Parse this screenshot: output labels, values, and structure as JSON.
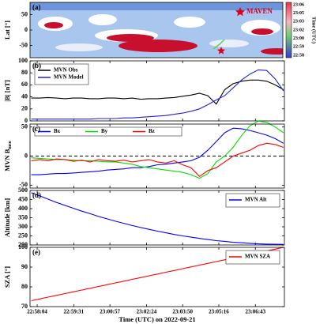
{
  "chart_data": [
    {
      "type": "map",
      "panel_label": "(a)",
      "ylabel": "Lat [°]",
      "ylim": [
        -90,
        90
      ],
      "yticks": [
        -50,
        0,
        50
      ],
      "annotation": "MAVEN",
      "colorbar": {
        "label": "Time (UTC)",
        "ticks": [
          "23:06",
          "23:05",
          "23:03",
          "23:02",
          "23:00",
          "22:59",
          "22:58"
        ]
      }
    },
    {
      "type": "line",
      "panel_label": "(b)",
      "ylabel": "|B| [nT]",
      "ylim": [
        0,
        100
      ],
      "yticks": [
        0,
        20,
        40,
        60,
        80,
        100
      ],
      "xlim": [
        82667,
        83272
      ],
      "legend": "upper left",
      "x": [
        82670,
        82690,
        82710,
        82730,
        82750,
        82770,
        82790,
        82810,
        82830,
        82850,
        82870,
        82890,
        82910,
        82930,
        82950,
        82970,
        82990,
        83010,
        83030,
        83050,
        83070,
        83090,
        83110,
        83130,
        83150,
        83170,
        83190,
        83210,
        83230,
        83250,
        83270
      ],
      "series": [
        {
          "name": "MVN Obs",
          "color": "#000000",
          "values": [
            38,
            38,
            39,
            38,
            37,
            38,
            38,
            37,
            37,
            38,
            38,
            37,
            38,
            36,
            37,
            37,
            38,
            39,
            41,
            43,
            46,
            42,
            28,
            52,
            62,
            66,
            68,
            68,
            66,
            60,
            52
          ]
        },
        {
          "name": "MVN Model",
          "color": "#2020d8",
          "values": [
            3,
            3,
            3,
            3,
            3,
            3,
            3,
            3,
            4,
            4,
            4,
            5,
            5,
            6,
            7,
            8,
            9,
            11,
            13,
            16,
            20,
            27,
            35,
            42,
            55,
            68,
            78,
            85,
            84,
            70,
            50
          ]
        }
      ]
    },
    {
      "type": "line",
      "panel_label": "(c)",
      "ylabel": "MVN B",
      "ylabel_subscript": "mso",
      "ylim": [
        -55,
        55
      ],
      "yticks": [
        -50,
        0,
        50
      ],
      "xlim": [
        82667,
        83272
      ],
      "hline": 0,
      "legend": "upper left",
      "x": [
        82670,
        82690,
        82710,
        82730,
        82750,
        82770,
        82790,
        82810,
        82830,
        82850,
        82870,
        82890,
        82910,
        82930,
        82950,
        82970,
        82990,
        83010,
        83030,
        83050,
        83070,
        83090,
        83110,
        83130,
        83150,
        83170,
        83190,
        83210,
        83230,
        83250,
        83270
      ],
      "series": [
        {
          "name": "Bx",
          "color": "#0000ff",
          "values": [
            -32,
            -32,
            -31,
            -30,
            -30,
            -29,
            -28,
            -27,
            -26,
            -24,
            -23,
            -22,
            -20,
            -20,
            -18,
            -15,
            -14,
            -12,
            -10,
            -8,
            -2,
            10,
            25,
            40,
            48,
            47,
            44,
            40,
            36,
            30,
            22
          ]
        },
        {
          "name": "By",
          "color": "#00e000",
          "values": [
            -3,
            -4,
            -5,
            -6,
            -6,
            -7,
            -8,
            -8,
            -9,
            -10,
            -10,
            -12,
            -14,
            -18,
            -20,
            -22,
            -24,
            -26,
            -28,
            -32,
            -38,
            -30,
            -10,
            0,
            15,
            35,
            52,
            60,
            58,
            50,
            40
          ]
        },
        {
          "name": "Bz",
          "color": "#ff0000",
          "values": [
            -8,
            -6,
            -8,
            -5,
            -6,
            -9,
            -7,
            -10,
            -6,
            -8,
            -9,
            -7,
            -10,
            -8,
            -6,
            -10,
            -12,
            -8,
            -15,
            -20,
            -35,
            -25,
            -20,
            -10,
            0,
            5,
            10,
            18,
            22,
            20,
            15
          ]
        }
      ]
    },
    {
      "type": "line",
      "panel_label": "(d)",
      "ylabel": "Altitude [km]",
      "ylim": [
        200,
        500
      ],
      "yticks": [
        200,
        250,
        300,
        350,
        400,
        450,
        500
      ],
      "xlim": [
        82667,
        83272
      ],
      "legend": "upper right",
      "x": [
        82670,
        82690,
        82710,
        82730,
        82750,
        82770,
        82790,
        82810,
        82830,
        82850,
        82870,
        82890,
        82910,
        82930,
        82950,
        82970,
        82990,
        83010,
        83030,
        83050,
        83070,
        83090,
        83110,
        83130,
        83150,
        83170,
        83190,
        83210,
        83230,
        83250,
        83270
      ],
      "series": [
        {
          "name": "MVN Alt",
          "color": "#0000ff",
          "values": [
            488,
            470,
            452,
            434,
            418,
            402,
            386,
            372,
            357,
            344,
            331,
            319,
            307,
            296,
            286,
            276,
            267,
            258,
            250,
            243,
            236,
            230,
            224,
            220,
            215,
            212,
            209,
            206,
            205,
            204,
            203
          ]
        }
      ]
    },
    {
      "type": "line",
      "panel_label": "(e)",
      "ylabel": "SZA [°]",
      "ylim": [
        70,
        100
      ],
      "yticks": [
        70,
        80,
        90,
        100
      ],
      "xlim": [
        82667,
        83272
      ],
      "legend": "upper right",
      "xlabel": "Time (UTC) on 2022-09-21",
      "xticks": [
        {
          "value": 82684,
          "label": "22:58:04"
        },
        {
          "value": 82771,
          "label": "22:59:31"
        },
        {
          "value": 82857,
          "label": "23:00:57"
        },
        {
          "value": 82944,
          "label": "23:02:24"
        },
        {
          "value": 83030,
          "label": "23:03:50"
        },
        {
          "value": 83116,
          "label": "23:05:16"
        },
        {
          "value": 83203,
          "label": "23:06:43"
        }
      ],
      "x": [
        82670,
        82690,
        82710,
        82730,
        82750,
        82770,
        82790,
        82810,
        82830,
        82850,
        82870,
        82890,
        82910,
        82930,
        82950,
        82970,
        82990,
        83010,
        83030,
        83050,
        83070,
        83090,
        83110,
        83130,
        83150,
        83170,
        83190,
        83210,
        83230,
        83250,
        83270
      ],
      "series": [
        {
          "name": "MVN SZA",
          "color": "#ff0000",
          "values": [
            73,
            73.9,
            74.8,
            75.7,
            76.6,
            77.5,
            78.4,
            79.3,
            80.2,
            81.1,
            82,
            82.9,
            83.8,
            84.7,
            85.6,
            86.5,
            87.4,
            88.3,
            89.2,
            90.1,
            91,
            91.9,
            92.8,
            93.7,
            94.6,
            95.5,
            96.4,
            97.3,
            98.2,
            99.1,
            100
          ]
        }
      ]
    }
  ]
}
